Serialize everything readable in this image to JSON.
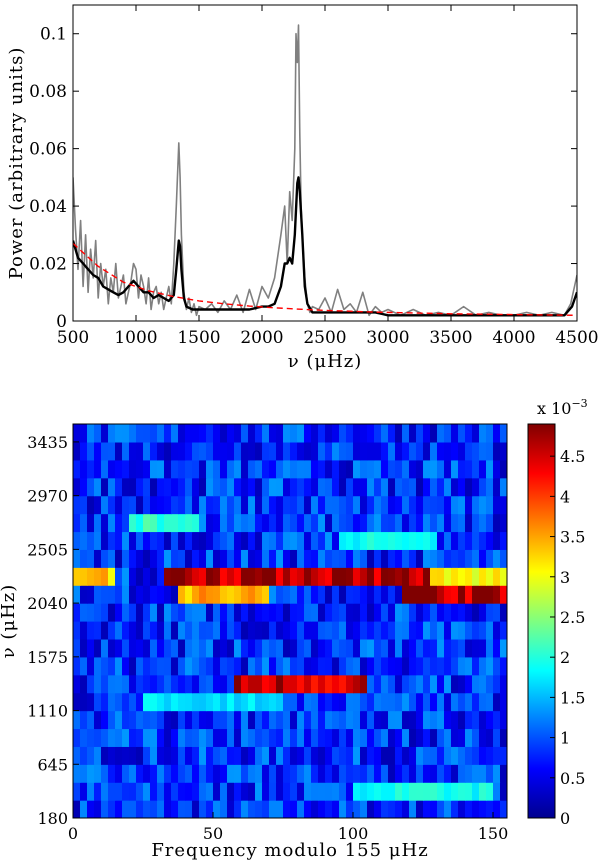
{
  "chart_data": [
    {
      "type": "line",
      "xlabel": "ν (μHz)",
      "ylabel": "Power (arbitrary units)",
      "xlim": [
        500,
        4500
      ],
      "ylim": [
        0,
        0.11
      ],
      "xticks": [
        500,
        1000,
        1500,
        2000,
        2500,
        3000,
        3500,
        4000,
        4500
      ],
      "xtick_labels": [
        "500",
        "1000",
        "1500",
        "2000",
        "2500",
        "3000",
        "3500",
        "4000",
        "4500"
      ],
      "yticks": [
        0,
        0.02,
        0.04,
        0.06,
        0.08,
        0.1
      ],
      "ytick_labels": [
        "0",
        "0.02",
        "0.04",
        "0.06",
        "0.08",
        "0.1"
      ],
      "grid": false,
      "series": [
        {
          "color": "#808080",
          "style": "solid",
          "x": [
            500,
            520,
            540,
            560,
            580,
            600,
            620,
            640,
            660,
            680,
            700,
            720,
            740,
            760,
            780,
            800,
            820,
            840,
            860,
            880,
            900,
            920,
            940,
            960,
            980,
            1000,
            1020,
            1040,
            1060,
            1080,
            1100,
            1120,
            1140,
            1160,
            1180,
            1200,
            1220,
            1240,
            1260,
            1280,
            1300,
            1320,
            1340,
            1350,
            1360,
            1380,
            1400,
            1420,
            1440,
            1460,
            1480,
            1500,
            1550,
            1600,
            1650,
            1700,
            1750,
            1800,
            1850,
            1900,
            1950,
            2000,
            2050,
            2100,
            2150,
            2180,
            2200,
            2220,
            2240,
            2260,
            2270,
            2280,
            2290,
            2300,
            2310,
            2320,
            2340,
            2360,
            2380,
            2400,
            2450,
            2500,
            2550,
            2600,
            2650,
            2700,
            2750,
            2800,
            2850,
            2900,
            2950,
            3000,
            3100,
            3200,
            3300,
            3400,
            3500,
            3600,
            3700,
            3800,
            3900,
            4000,
            4100,
            4200,
            4300,
            4400,
            4450,
            4480,
            4500
          ],
          "y": [
            0.05,
            0.032,
            0.018,
            0.035,
            0.012,
            0.03,
            0.01,
            0.025,
            0.015,
            0.028,
            0.008,
            0.02,
            0.012,
            0.018,
            0.006,
            0.015,
            0.01,
            0.02,
            0.008,
            0.012,
            0.016,
            0.006,
            0.01,
            0.014,
            0.02,
            0.018,
            0.008,
            0.016,
            0.012,
            0.006,
            0.015,
            0.004,
            0.01,
            0.012,
            0.006,
            0.01,
            0.004,
            0.008,
            0.012,
            0.006,
            0.02,
            0.04,
            0.062,
            0.05,
            0.03,
            0.01,
            0.004,
            0.008,
            0.003,
            0.006,
            0.002,
            0.005,
            0.004,
            0.006,
            0.003,
            0.007,
            0.004,
            0.009,
            0.003,
            0.011,
            0.004,
            0.012,
            0.008,
            0.015,
            0.03,
            0.04,
            0.02,
            0.045,
            0.035,
            0.06,
            0.1,
            0.09,
            0.103,
            0.065,
            0.04,
            0.03,
            0.015,
            0.006,
            0.003,
            0.005,
            0.004,
            0.008,
            0.003,
            0.011,
            0.004,
            0.006,
            0.003,
            0.01,
            0.002,
            0.005,
            0.003,
            0.004,
            0.002,
            0.004,
            0.002,
            0.003,
            0.002,
            0.005,
            0.002,
            0.003,
            0.002,
            0.002,
            0.003,
            0.002,
            0.003,
            0.002,
            0.006,
            0.012,
            0.016
          ]
        },
        {
          "color": "#000000",
          "style": "solid",
          "x": [
            500,
            540,
            580,
            620,
            660,
            700,
            740,
            780,
            820,
            860,
            900,
            940,
            980,
            1020,
            1060,
            1100,
            1140,
            1180,
            1220,
            1260,
            1300,
            1320,
            1340,
            1350,
            1360,
            1380,
            1400,
            1450,
            1500,
            1600,
            1700,
            1800,
            1900,
            2000,
            2050,
            2100,
            2150,
            2180,
            2200,
            2220,
            2240,
            2260,
            2280,
            2290,
            2300,
            2320,
            2340,
            2360,
            2400,
            2500,
            2600,
            2700,
            2800,
            2900,
            3000,
            3200,
            3400,
            3600,
            3800,
            4000,
            4200,
            4400,
            4460,
            4500
          ],
          "y": [
            0.028,
            0.022,
            0.02,
            0.018,
            0.016,
            0.015,
            0.012,
            0.011,
            0.01,
            0.009,
            0.01,
            0.012,
            0.014,
            0.012,
            0.01,
            0.01,
            0.008,
            0.009,
            0.008,
            0.007,
            0.009,
            0.018,
            0.028,
            0.026,
            0.018,
            0.008,
            0.005,
            0.004,
            0.004,
            0.004,
            0.004,
            0.004,
            0.004,
            0.005,
            0.005,
            0.006,
            0.012,
            0.02,
            0.02,
            0.022,
            0.02,
            0.03,
            0.048,
            0.05,
            0.045,
            0.03,
            0.012,
            0.006,
            0.003,
            0.003,
            0.003,
            0.003,
            0.003,
            0.003,
            0.002,
            0.002,
            0.002,
            0.002,
            0.002,
            0.002,
            0.002,
            0.002,
            0.005,
            0.01
          ]
        },
        {
          "color": "#ff0000",
          "style": "dashed",
          "x": [
            500,
            700,
            900,
            1100,
            1300,
            1500,
            1700,
            1900,
            2100,
            2300,
            2500,
            2700,
            2900,
            3100,
            3300,
            3500,
            3700,
            3900,
            4100,
            4300,
            4500
          ],
          "y": [
            0.027,
            0.019,
            0.0135,
            0.0105,
            0.0085,
            0.007,
            0.006,
            0.0052,
            0.0046,
            0.0041,
            0.0037,
            0.0034,
            0.0031,
            0.0029,
            0.0027,
            0.0025,
            0.0024,
            0.0023,
            0.0022,
            0.0021,
            0.002
          ]
        }
      ]
    },
    {
      "type": "heatmap",
      "xlabel": "Frequency modulo 155 μHz",
      "ylabel": "ν (μHz)",
      "xlim": [
        0,
        155
      ],
      "ylim": [
        180,
        3590
      ],
      "xticks": [
        0,
        50,
        100,
        150
      ],
      "xtick_labels": [
        "0",
        "50",
        "100",
        "150"
      ],
      "yticks": [
        180,
        645,
        1110,
        1575,
        2040,
        2505,
        2970,
        3435
      ],
      "ytick_labels": [
        "180",
        "645",
        "1110",
        "1575",
        "2040",
        "2505",
        "2970",
        "3435"
      ],
      "rows": 22,
      "row_bin_width": 155,
      "colorscale": "jet",
      "colorbar": {
        "range": [
          0,
          0.0049
        ],
        "ticks": [
          0,
          0.5,
          1,
          1.5,
          2,
          2.5,
          3,
          3.5,
          4,
          4.5
        ],
        "tick_labels": [
          "0",
          "0.5",
          "1",
          "1.5",
          "2",
          "2.5",
          "3",
          "3.5",
          "4",
          "4.5"
        ],
        "exponent_label": "x 10",
        "exponent": "−3"
      },
      "highlights": [
        {
          "row_start_nu": 2195,
          "x_range": [
            0,
            15
          ],
          "level": 3.5
        },
        {
          "row_start_nu": 2195,
          "x_range": [
            33,
            128
          ],
          "level": 5.0
        },
        {
          "row_start_nu": 2195,
          "x_range": [
            128,
            155
          ],
          "level": 3.2
        },
        {
          "row_start_nu": 2040,
          "x_range": [
            38,
            70
          ],
          "level": 3.6
        },
        {
          "row_start_nu": 2040,
          "x_range": [
            118,
            155
          ],
          "level": 5.0
        },
        {
          "row_start_nu": 1265,
          "x_range": [
            58,
            105
          ],
          "level": 4.8
        },
        {
          "row_start_nu": 2660,
          "x_range": [
            20,
            45
          ],
          "level": 2.2
        },
        {
          "row_start_nu": 2505,
          "x_range": [
            95,
            130
          ],
          "level": 2.0
        },
        {
          "row_start_nu": 1110,
          "x_range": [
            25,
            75
          ],
          "level": 1.8
        },
        {
          "row_start_nu": 335,
          "x_range": [
            100,
            150
          ],
          "level": 2.0
        }
      ]
    }
  ]
}
